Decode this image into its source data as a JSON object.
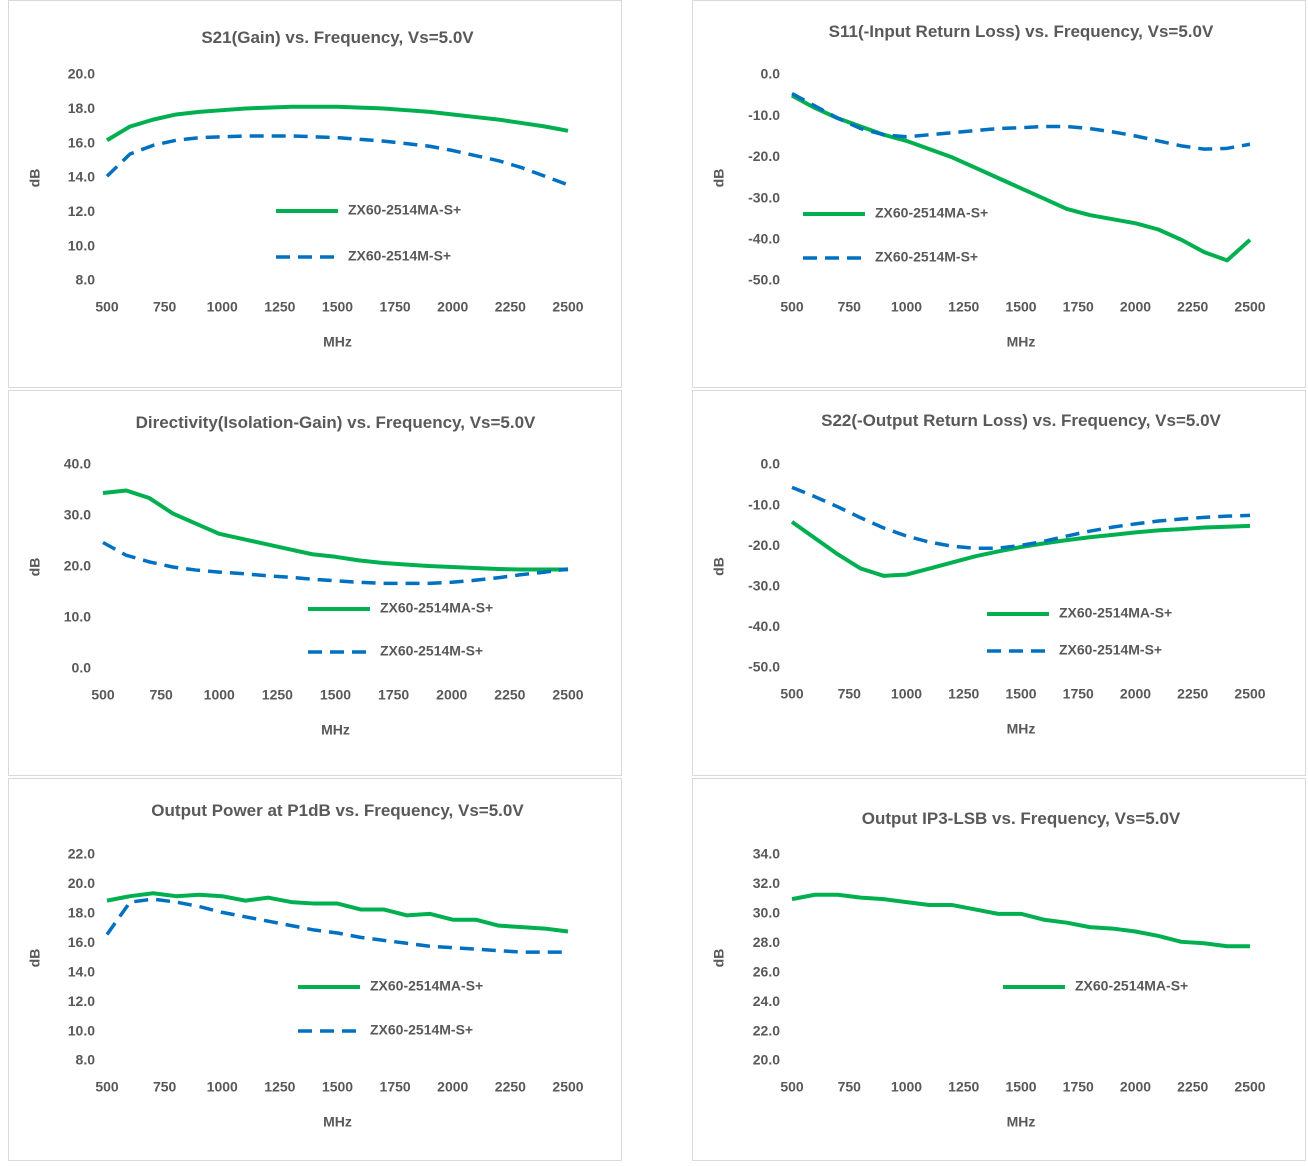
{
  "chart_data": [
    {
      "type": "line",
      "title": "S21(Gain) vs. Frequency, Vs=5.0V",
      "xlabel": "MHz",
      "ylabel": "dB",
      "grid": false,
      "x": [
        500,
        600,
        700,
        800,
        900,
        1000,
        1100,
        1200,
        1300,
        1400,
        1500,
        1600,
        1700,
        1800,
        1900,
        2000,
        2100,
        2200,
        2300,
        2400,
        2500
      ],
      "xlim": [
        500,
        2500
      ],
      "xticks": [
        500,
        750,
        1000,
        1250,
        1500,
        1750,
        2000,
        2250,
        2500
      ],
      "ylim": [
        8,
        20
      ],
      "yticks": [
        {
          "value": 8,
          "label": "8.0"
        },
        {
          "value": 10,
          "label": "10.0"
        },
        {
          "value": 12,
          "label": "12.0"
        },
        {
          "value": 14,
          "label": "14.0"
        },
        {
          "value": 16,
          "label": "16.0"
        },
        {
          "value": 18,
          "label": "18.0"
        },
        {
          "value": 20,
          "label": "20.0"
        }
      ],
      "series": [
        {
          "name": "ZX60-2514MA-S+",
          "color": "#00b050",
          "dash": "solid",
          "values": [
            16.2,
            17.0,
            17.4,
            17.7,
            17.85,
            17.95,
            18.05,
            18.1,
            18.15,
            18.15,
            18.15,
            18.1,
            18.05,
            17.95,
            17.85,
            17.7,
            17.55,
            17.4,
            17.2,
            17.0,
            16.75
          ]
        },
        {
          "name": "ZX60-2514M-S+",
          "color": "#0070c0",
          "dash": "dashed",
          "values": [
            14.1,
            15.4,
            15.9,
            16.2,
            16.35,
            16.4,
            16.45,
            16.45,
            16.45,
            16.4,
            16.35,
            16.25,
            16.15,
            16.0,
            15.85,
            15.6,
            15.3,
            15.0,
            14.6,
            14.1,
            13.6
          ]
        }
      ]
    },
    {
      "type": "line",
      "title": "S11(-Input Return Loss) vs. Frequency, Vs=5.0V",
      "xlabel": "MHz",
      "ylabel": "dB",
      "grid": false,
      "x": [
        500,
        600,
        700,
        800,
        900,
        1000,
        1100,
        1200,
        1300,
        1400,
        1500,
        1600,
        1700,
        1800,
        1900,
        2000,
        2100,
        2200,
        2300,
        2400,
        2500
      ],
      "xlim": [
        500,
        2500
      ],
      "xticks": [
        500,
        750,
        1000,
        1250,
        1500,
        1750,
        2000,
        2250,
        2500
      ],
      "ylim": [
        -50,
        0
      ],
      "yticks": [
        {
          "value": -50,
          "label": "-50.0"
        },
        {
          "value": -40,
          "label": "-40.0"
        },
        {
          "value": -30,
          "label": "-30.0"
        },
        {
          "value": -20,
          "label": "-20.0"
        },
        {
          "value": -10,
          "label": "-10.0"
        },
        {
          "value": 0,
          "label": "0.0"
        }
      ],
      "series": [
        {
          "name": "ZX60-2514MA-S+",
          "color": "#00b050",
          "dash": "solid",
          "values": [
            -5,
            -8,
            -10.5,
            -12.5,
            -14.5,
            -16,
            -18,
            -20,
            -22.5,
            -25,
            -27.5,
            -30,
            -32.5,
            -34,
            -35,
            -36,
            -37.5,
            -40,
            -43,
            -45,
            -40
          ]
        },
        {
          "name": "ZX60-2514M-S+",
          "color": "#0070c0",
          "dash": "dashed",
          "values": [
            -4.5,
            -7.5,
            -10.5,
            -13,
            -14.5,
            -15,
            -14.5,
            -14,
            -13.5,
            -13,
            -12.8,
            -12.5,
            -12.5,
            -13,
            -13.8,
            -14.8,
            -16,
            -17.2,
            -18,
            -17.8,
            -16.8
          ]
        }
      ]
    },
    {
      "type": "line",
      "title": "Directivity(Isolation-Gain) vs. Frequency, Vs=5.0V",
      "xlabel": "MHz",
      "ylabel": "dB",
      "grid": false,
      "x": [
        500,
        600,
        700,
        800,
        900,
        1000,
        1100,
        1200,
        1300,
        1400,
        1500,
        1600,
        1700,
        1800,
        1900,
        2000,
        2100,
        2200,
        2300,
        2400,
        2500
      ],
      "xlim": [
        500,
        2500
      ],
      "xticks": [
        500,
        750,
        1000,
        1250,
        1500,
        1750,
        2000,
        2250,
        2500
      ],
      "ylim": [
        0,
        40
      ],
      "yticks": [
        {
          "value": 0,
          "label": "0.0"
        },
        {
          "value": 10,
          "label": "10.0"
        },
        {
          "value": 20,
          "label": "20.0"
        },
        {
          "value": 30,
          "label": "30.0"
        },
        {
          "value": 40,
          "label": "40.0"
        }
      ],
      "series": [
        {
          "name": "ZX60-2514MA-S+",
          "color": "#00b050",
          "dash": "solid",
          "values": [
            34.5,
            35,
            33.5,
            30.5,
            28.5,
            26.5,
            25.5,
            24.5,
            23.5,
            22.5,
            22,
            21.3,
            20.8,
            20.5,
            20.2,
            20,
            19.8,
            19.6,
            19.5,
            19.5,
            19.5
          ]
        },
        {
          "name": "ZX60-2514M-S+",
          "color": "#0070c0",
          "dash": "dashed",
          "values": [
            24.8,
            22.3,
            21,
            20,
            19.4,
            19,
            18.7,
            18.3,
            18,
            17.6,
            17.3,
            17,
            16.8,
            16.8,
            16.8,
            17,
            17.4,
            17.9,
            18.5,
            19,
            19.6
          ]
        }
      ]
    },
    {
      "type": "line",
      "title": "S22(-Output Return Loss) vs. Frequency, Vs=5.0V",
      "xlabel": "MHz",
      "ylabel": "dB",
      "grid": false,
      "x": [
        500,
        600,
        700,
        800,
        900,
        1000,
        1100,
        1200,
        1300,
        1400,
        1500,
        1600,
        1700,
        1800,
        1900,
        2000,
        2100,
        2200,
        2300,
        2400,
        2500
      ],
      "xlim": [
        500,
        2500
      ],
      "xticks": [
        500,
        750,
        1000,
        1250,
        1500,
        1750,
        2000,
        2250,
        2500
      ],
      "ylim": [
        -50,
        0
      ],
      "yticks": [
        {
          "value": -50,
          "label": "-50.0"
        },
        {
          "value": -40,
          "label": "-40.0"
        },
        {
          "value": -30,
          "label": "-30.0"
        },
        {
          "value": -20,
          "label": "-20.0"
        },
        {
          "value": -10,
          "label": "-10.0"
        },
        {
          "value": 0,
          "label": "0.0"
        }
      ],
      "series": [
        {
          "name": "ZX60-2514MA-S+",
          "color": "#00b050",
          "dash": "solid",
          "values": [
            -14,
            -18,
            -22,
            -25.5,
            -27.3,
            -27,
            -25.5,
            -24,
            -22.5,
            -21.3,
            -20.2,
            -19.3,
            -18.5,
            -17.8,
            -17.2,
            -16.6,
            -16.1,
            -15.8,
            -15.4,
            -15.2,
            -15
          ]
        },
        {
          "name": "ZX60-2514M-S+",
          "color": "#0070c0",
          "dash": "dashed",
          "values": [
            -5.5,
            -7.8,
            -10.3,
            -13,
            -15.5,
            -17.5,
            -19,
            -20,
            -20.5,
            -20.5,
            -19.8,
            -18.8,
            -17.5,
            -16.3,
            -15.3,
            -14.5,
            -13.8,
            -13.3,
            -12.9,
            -12.6,
            -12.4
          ]
        }
      ]
    },
    {
      "type": "line",
      "title": "Output Power at P1dB vs. Frequency, Vs=5.0V",
      "xlabel": "MHz",
      "ylabel": "dB",
      "grid": false,
      "x": [
        500,
        600,
        700,
        800,
        900,
        1000,
        1100,
        1200,
        1300,
        1400,
        1500,
        1600,
        1700,
        1800,
        1900,
        2000,
        2100,
        2200,
        2300,
        2400,
        2500
      ],
      "xlim": [
        500,
        2500
      ],
      "xticks": [
        500,
        750,
        1000,
        1250,
        1500,
        1750,
        2000,
        2250,
        2500
      ],
      "ylim": [
        8,
        22
      ],
      "yticks": [
        {
          "value": 8,
          "label": "8.0"
        },
        {
          "value": 10,
          "label": "10.0"
        },
        {
          "value": 12,
          "label": "12.0"
        },
        {
          "value": 14,
          "label": "14.0"
        },
        {
          "value": 16,
          "label": "16.0"
        },
        {
          "value": 18,
          "label": "18.0"
        },
        {
          "value": 20,
          "label": "20.0"
        },
        {
          "value": 22,
          "label": "22.0"
        }
      ],
      "series": [
        {
          "name": "ZX60-2514MA-S+",
          "color": "#00b050",
          "dash": "solid",
          "values": [
            18.9,
            19.2,
            19.4,
            19.2,
            19.3,
            19.2,
            18.9,
            19.1,
            18.8,
            18.7,
            18.7,
            18.3,
            18.3,
            17.9,
            18.0,
            17.6,
            17.6,
            17.2,
            17.1,
            17.0,
            16.8
          ]
        },
        {
          "name": "ZX60-2514M-S+",
          "color": "#0070c0",
          "dash": "dashed",
          "values": [
            16.6,
            18.8,
            19.0,
            18.8,
            18.5,
            18.1,
            17.8,
            17.5,
            17.2,
            16.9,
            16.7,
            16.4,
            16.2,
            16.0,
            15.8,
            15.7,
            15.6,
            15.5,
            15.4,
            15.4,
            15.4
          ]
        }
      ]
    },
    {
      "type": "line",
      "title": "Output IP3-LSB vs. Frequency, Vs=5.0V",
      "xlabel": "MHz",
      "ylabel": "dB",
      "grid": false,
      "x": [
        500,
        600,
        700,
        800,
        900,
        1000,
        1100,
        1200,
        1300,
        1400,
        1500,
        1600,
        1700,
        1800,
        1900,
        2000,
        2100,
        2200,
        2300,
        2400,
        2500
      ],
      "xlim": [
        500,
        2500
      ],
      "xticks": [
        500,
        750,
        1000,
        1250,
        1500,
        1750,
        2000,
        2250,
        2500
      ],
      "ylim": [
        20,
        34
      ],
      "yticks": [
        {
          "value": 20,
          "label": "20.0"
        },
        {
          "value": 22,
          "label": "22.0"
        },
        {
          "value": 24,
          "label": "24.0"
        },
        {
          "value": 26,
          "label": "26.0"
        },
        {
          "value": 28,
          "label": "28.0"
        },
        {
          "value": 30,
          "label": "30.0"
        },
        {
          "value": 32,
          "label": "32.0"
        },
        {
          "value": 34,
          "label": "34.0"
        }
      ],
      "series": [
        {
          "name": "ZX60-2514MA-S+",
          "color": "#00b050",
          "dash": "solid",
          "values": [
            31.0,
            31.3,
            31.3,
            31.1,
            31.0,
            30.8,
            30.6,
            30.6,
            30.3,
            30.0,
            30.0,
            29.6,
            29.4,
            29.1,
            29.0,
            28.8,
            28.5,
            28.1,
            28.0,
            27.8,
            27.8
          ]
        }
      ]
    }
  ]
}
